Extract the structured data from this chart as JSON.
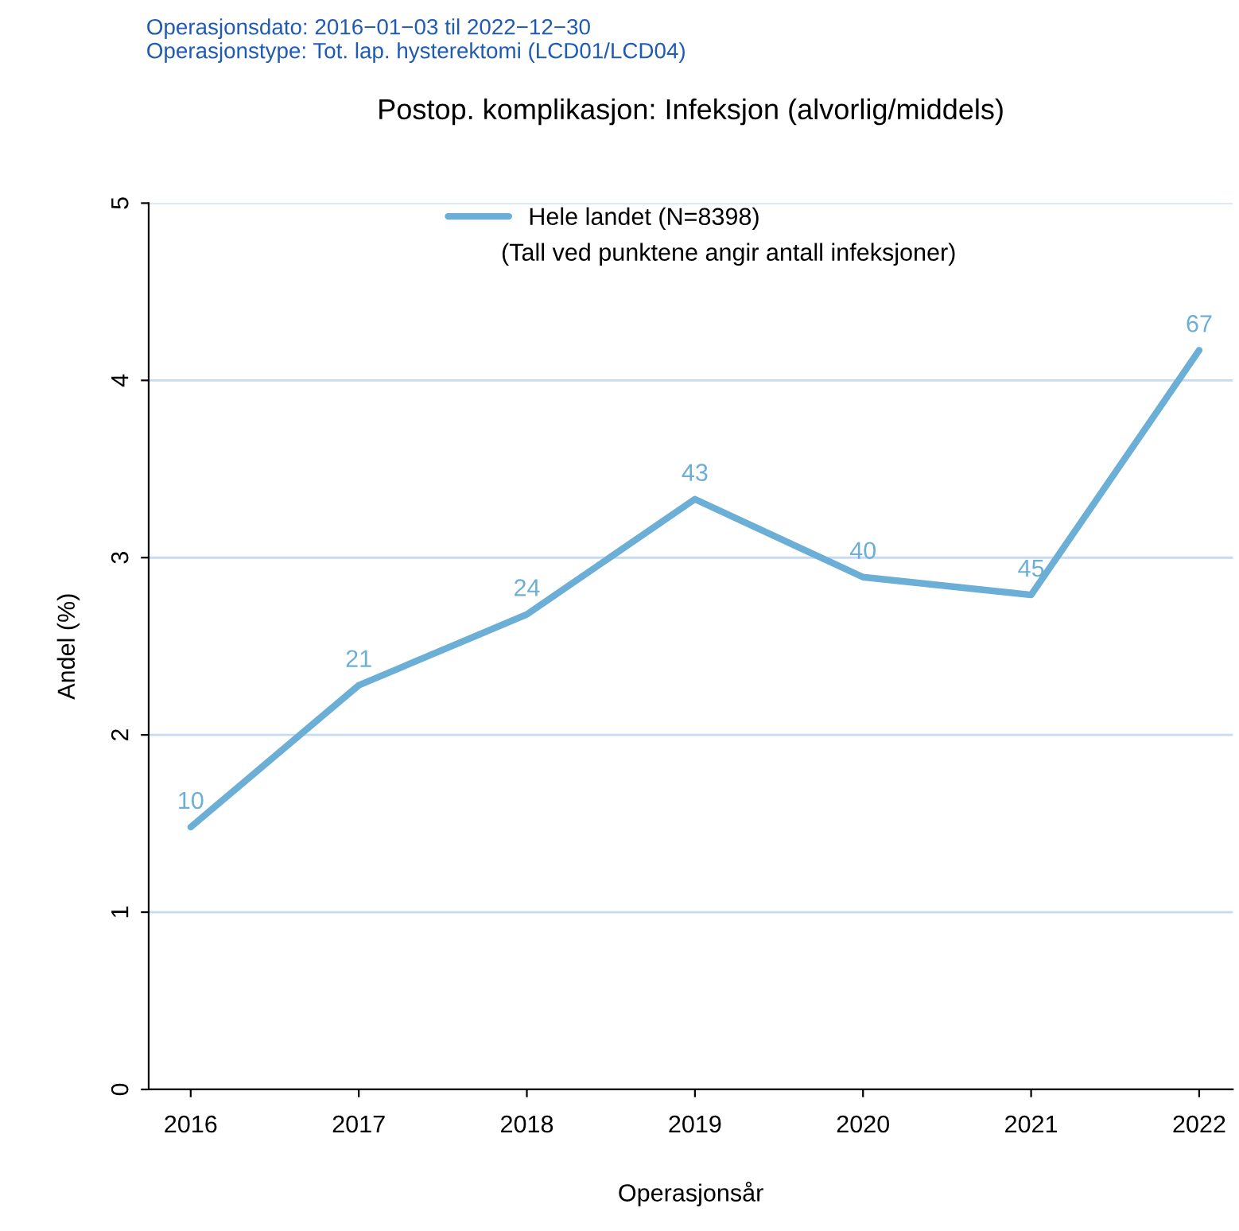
{
  "chart_data": {
    "type": "line",
    "title": "Postop. komplikasjon: Infeksjon (alvorlig/middels)",
    "xlabel": "Operasjonsår",
    "ylabel": "Andel (%)",
    "categories": [
      "2016",
      "2017",
      "2018",
      "2019",
      "2020",
      "2021",
      "2022"
    ],
    "series": [
      {
        "name": "Hele landet (N=8398)",
        "color": "#6baed6",
        "values": [
          1.48,
          2.28,
          2.68,
          3.33,
          2.89,
          2.79,
          4.17
        ]
      }
    ],
    "ylim": [
      0,
      5
    ],
    "yticks": [
      0,
      1,
      2,
      3,
      4,
      5
    ],
    "grid": "y",
    "legend": "top",
    "annotations": [
      "Operasjonsdato: 2016−01−03 til 2022−12−30",
      "Operasjonstype: Tot. lap. hysterektomi (LCD01/LCD04)",
      "(Tall ved punktene angir antall infeksjoner)",
      {
        "text": "10",
        "x": "2016",
        "y": 1.48
      },
      {
        "text": "21",
        "x": "2017",
        "y": 2.28
      },
      {
        "text": "24",
        "x": "2018",
        "y": 2.68
      },
      {
        "text": "43",
        "x": "2019",
        "y": 3.33
      },
      {
        "text": "40",
        "x": "2020",
        "y": 2.89
      },
      {
        "text": "45",
        "x": "2021",
        "y": 2.79
      },
      {
        "text": "67",
        "x": "2022",
        "y": 4.17
      }
    ]
  }
}
